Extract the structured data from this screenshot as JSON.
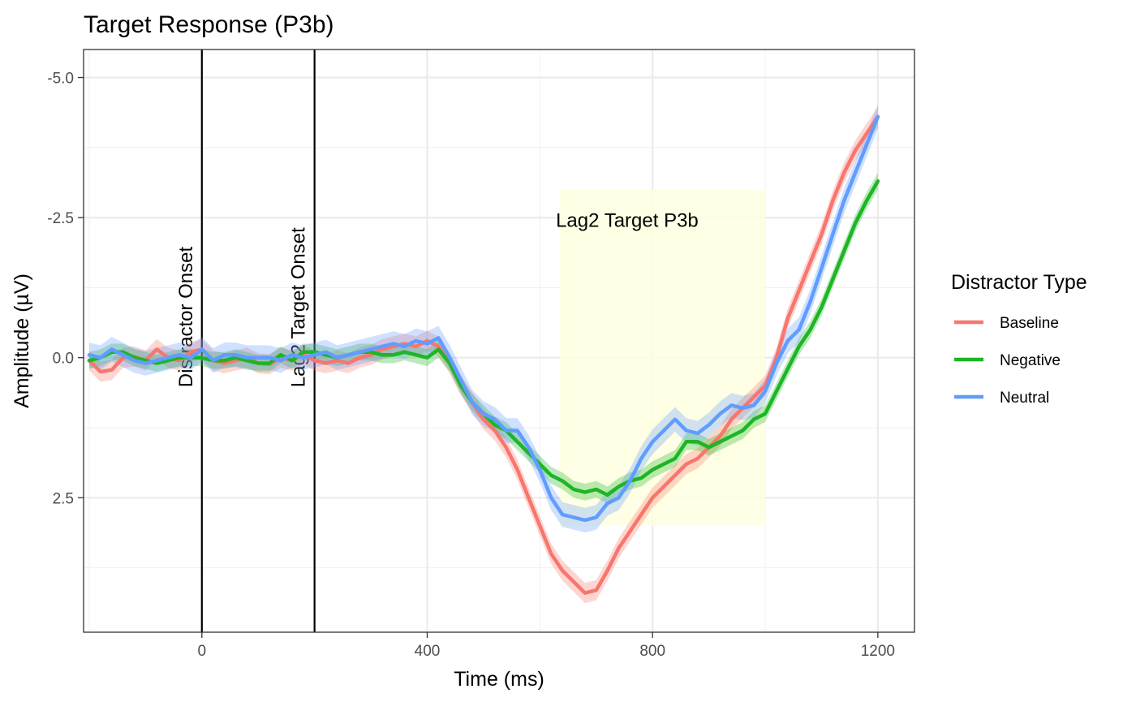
{
  "chart_data": {
    "type": "line",
    "title": "Target Response (P3b)",
    "xlabel": "Time (ms)",
    "ylabel": "Amplitude (µV)",
    "xlim": [
      -210,
      1265
    ],
    "ylim": [
      -5.5,
      4.9
    ],
    "y_reversed": true,
    "grid": true,
    "x_ticks": [
      0,
      400,
      800,
      1200
    ],
    "y_ticks": [
      -5.0,
      -2.5,
      0.0,
      2.5
    ],
    "x_tick_labels": [
      "0",
      "400",
      "800",
      "1200"
    ],
    "y_tick_labels": [
      "-5.0",
      "-2.5",
      "0.0",
      "2.5"
    ],
    "legend": {
      "title": "Distractor Type",
      "placement": "right",
      "entries": [
        "Baseline",
        "Negative",
        "Neutral"
      ]
    },
    "annotations": {
      "vlines": [
        {
          "x": 0,
          "label": "Distractor Onset",
          "label_y": 0.5
        },
        {
          "x": 200,
          "label": "Lag2 Target Onset",
          "label_y": 0.5
        }
      ],
      "region": {
        "x0": 635,
        "x1": 1000,
        "y0": -3.0,
        "y1": 3.0,
        "color": "#ffffe0",
        "label": "Lag2 Target P3b",
        "label_x": 755,
        "label_y": -2.45
      }
    },
    "x": [
      -200,
      -180,
      -160,
      -140,
      -120,
      -100,
      -80,
      -60,
      -40,
      -20,
      0,
      20,
      40,
      60,
      80,
      100,
      120,
      140,
      160,
      180,
      200,
      220,
      240,
      260,
      280,
      300,
      320,
      340,
      360,
      380,
      400,
      420,
      440,
      460,
      480,
      500,
      520,
      540,
      560,
      580,
      600,
      620,
      640,
      660,
      680,
      700,
      720,
      740,
      760,
      780,
      800,
      820,
      840,
      860,
      880,
      900,
      920,
      940,
      960,
      980,
      1000,
      1020,
      1040,
      1060,
      1080,
      1100,
      1120,
      1140,
      1160,
      1180,
      1200
    ],
    "series": [
      {
        "name": "Baseline",
        "color": "#F8766D",
        "ci": 0.18,
        "values": [
          0.05,
          0.25,
          0.22,
          0.0,
          -0.02,
          0.05,
          -0.15,
          0.0,
          0.05,
          -0.1,
          -0.15,
          0.05,
          0.1,
          0.05,
          0.0,
          0.1,
          0.12,
          0.0,
          0.05,
          -0.05,
          0.05,
          0.1,
          0.05,
          0.1,
          0.0,
          -0.05,
          -0.15,
          -0.2,
          -0.25,
          -0.2,
          -0.3,
          -0.2,
          0.1,
          0.5,
          0.8,
          1.1,
          1.3,
          1.6,
          2.0,
          2.5,
          3.0,
          3.5,
          3.8,
          4.0,
          4.2,
          4.15,
          3.8,
          3.4,
          3.1,
          2.8,
          2.5,
          2.3,
          2.1,
          1.9,
          1.8,
          1.6,
          1.4,
          1.1,
          0.9,
          0.7,
          0.5,
          0.0,
          -0.7,
          -1.2,
          -1.7,
          -2.2,
          -2.8,
          -3.3,
          -3.7,
          -4.0,
          -4.3
        ]
      },
      {
        "name": "Negative",
        "color": "#1EB526",
        "ci": 0.15,
        "values": [
          0.05,
          0.0,
          -0.1,
          -0.1,
          0.0,
          0.05,
          0.1,
          0.05,
          0.0,
          0.0,
          0.0,
          0.05,
          0.05,
          0.0,
          0.05,
          0.1,
          0.1,
          -0.05,
          0.05,
          -0.1,
          -0.1,
          -0.05,
          0.0,
          -0.05,
          -0.1,
          -0.1,
          -0.05,
          -0.05,
          -0.1,
          -0.05,
          0.0,
          -0.15,
          0.1,
          0.5,
          0.8,
          1.0,
          1.2,
          1.3,
          1.5,
          1.7,
          1.9,
          2.1,
          2.2,
          2.35,
          2.4,
          2.35,
          2.45,
          2.3,
          2.2,
          2.15,
          2.0,
          1.9,
          1.8,
          1.5,
          1.5,
          1.6,
          1.5,
          1.4,
          1.3,
          1.1,
          1.0,
          0.6,
          0.2,
          -0.2,
          -0.5,
          -0.9,
          -1.4,
          -1.9,
          -2.4,
          -2.8,
          -3.15
        ]
      },
      {
        "name": "Neutral",
        "color": "#619CFF",
        "ci": 0.22,
        "values": [
          -0.05,
          0.0,
          -0.15,
          -0.05,
          0.05,
          0.1,
          0.05,
          0.0,
          -0.05,
          0.0,
          -0.15,
          0.05,
          -0.05,
          -0.05,
          0.0,
          0.0,
          0.0,
          0.05,
          -0.05,
          0.0,
          -0.05,
          -0.1,
          0.0,
          -0.05,
          -0.1,
          -0.15,
          -0.2,
          -0.25,
          -0.2,
          -0.3,
          -0.25,
          -0.35,
          0.0,
          0.4,
          0.8,
          1.0,
          1.1,
          1.3,
          1.3,
          1.6,
          2.0,
          2.5,
          2.8,
          2.85,
          2.9,
          2.85,
          2.6,
          2.5,
          2.2,
          1.8,
          1.5,
          1.3,
          1.1,
          1.3,
          1.35,
          1.2,
          1.0,
          0.85,
          0.9,
          0.85,
          0.6,
          0.1,
          -0.3,
          -0.5,
          -1.0,
          -1.6,
          -2.2,
          -2.8,
          -3.3,
          -3.8,
          -4.3
        ]
      }
    ]
  }
}
